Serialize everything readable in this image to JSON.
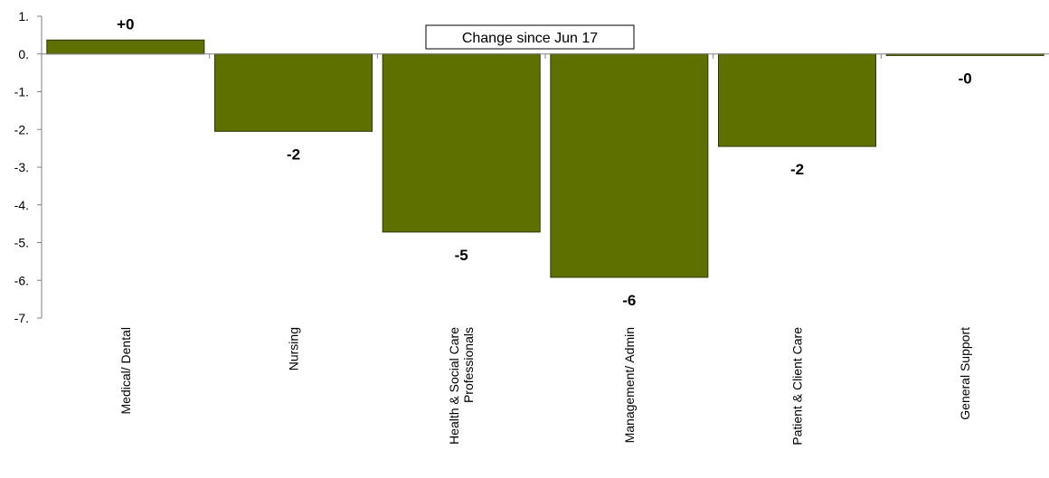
{
  "chart_data": {
    "type": "bar",
    "title": "Change since Jun 17",
    "xlabel": "",
    "ylabel": "",
    "categories": [
      [
        "Medical/ Dental"
      ],
      [
        "Nursing"
      ],
      [
        "Health & Social Care",
        "Professionals"
      ],
      [
        "Management/ Admin"
      ],
      [
        "Patient & Client Care"
      ],
      [
        "General Support"
      ]
    ],
    "values": [
      0.37,
      -2.05,
      -4.72,
      -5.92,
      -2.45,
      -0.04
    ],
    "data_labels": [
      "+0",
      "-2",
      "-5",
      "-6",
      "-2",
      "-0"
    ],
    "ylim": [
      -7,
      1
    ],
    "yticks": [
      1,
      0,
      -1,
      -2,
      -3,
      -4,
      -5,
      -6,
      -7
    ],
    "ytick_labels": [
      "1.",
      "0.",
      "-1.",
      "-2.",
      "-3.",
      "-4.",
      "-5.",
      "-6.",
      "-7."
    ],
    "grid": false,
    "legend": "none",
    "colors": {
      "bar_fill": "#5e7000",
      "bar_stroke": "#2f3800",
      "axis": "#808080",
      "text": "#000000"
    }
  }
}
